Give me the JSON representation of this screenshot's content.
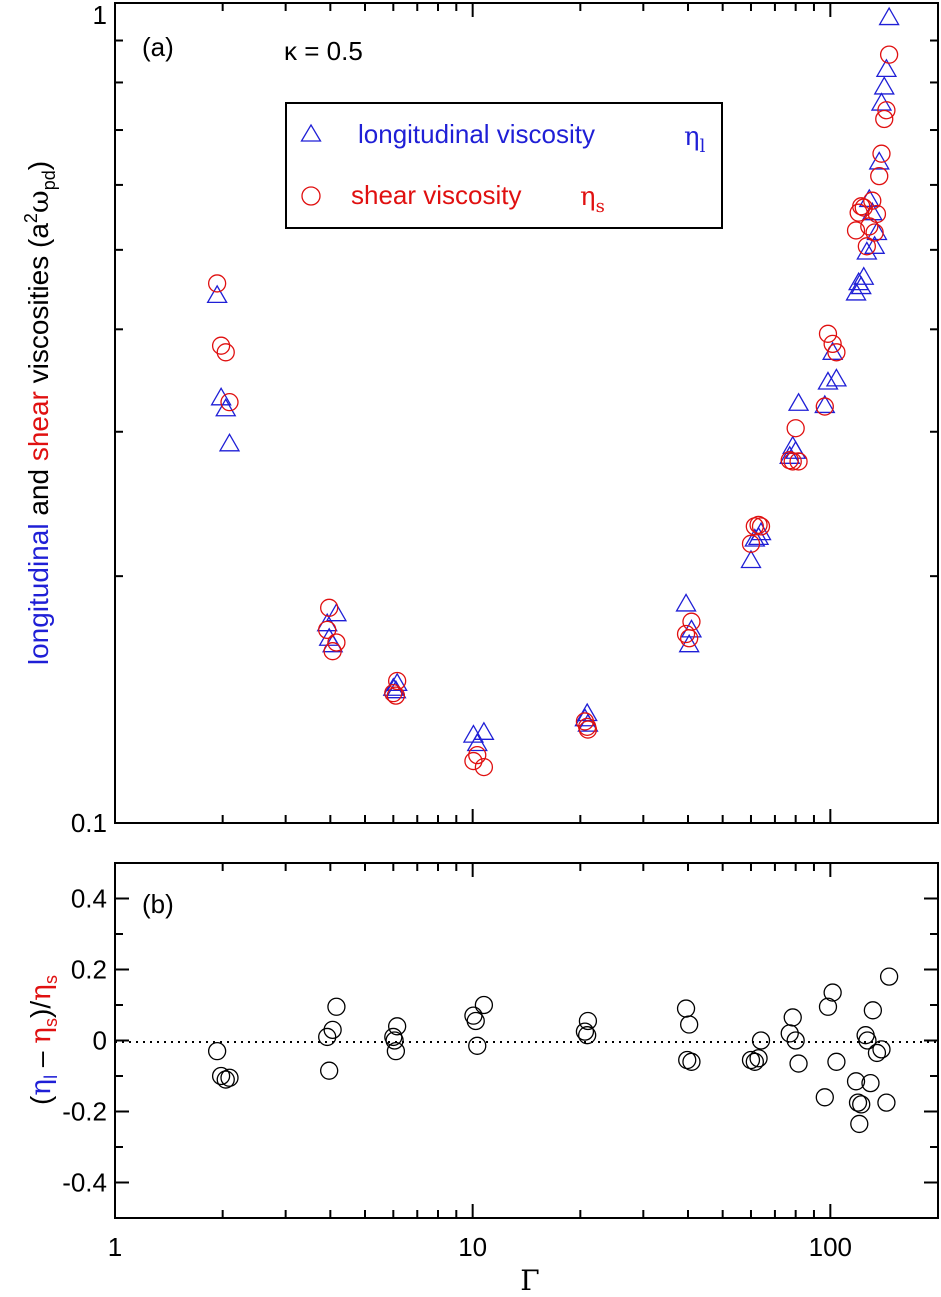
{
  "colors": {
    "longitudinal": "#1f1fd6",
    "shear": "#e01010",
    "axis": "#000000",
    "ratio": "#000000"
  },
  "chart_data": [
    {
      "panel": "a",
      "type": "scatter",
      "panel_label": "(a)",
      "annotation": "κ = 0.5",
      "x_scale": "log",
      "y_scale": "log",
      "xlim": [
        1,
        200
      ],
      "ylim": [
        0.1,
        1
      ],
      "y_tick_labels": [
        {
          "value": 1,
          "label": "1"
        },
        {
          "value": 0.1,
          "label": "0.1"
        }
      ],
      "ylabel": {
        "part_longitudinal": "longitudinal",
        "part_and": " and ",
        "part_shear": "shear",
        "part_rest": " viscosities (a",
        "sup": "2",
        "omega": "ω",
        "sub": "pd",
        "close": ")"
      },
      "legend": [
        {
          "name": "longitudinal",
          "text": "longitudinal viscosity",
          "symbol": "η",
          "sub": "l",
          "marker": "triangle",
          "color_key": "longitudinal"
        },
        {
          "name": "shear",
          "text": "shear viscosity",
          "symbol": "η",
          "sub": "s",
          "marker": "circle",
          "color_key": "shear"
        }
      ],
      "series": [
        {
          "name": "longitudinal viscosity",
          "marker": "triangle",
          "color_key": "longitudinal",
          "points": [
            [
              1.93,
              0.44
            ],
            [
              1.98,
              0.33
            ],
            [
              2.04,
              0.32
            ],
            [
              2.09,
              0.29
            ],
            [
              3.92,
              0.175
            ],
            [
              4.06,
              0.165
            ],
            [
              4.16,
              0.18
            ],
            [
              3.97,
              0.168
            ],
            [
              6.0,
              0.146
            ],
            [
              6.1,
              0.145
            ],
            [
              6.15,
              0.148
            ],
            [
              10.05,
              0.128
            ],
            [
              10.3,
              0.125
            ],
            [
              10.75,
              0.129
            ],
            [
              20.6,
              0.134
            ],
            [
              20.9,
              0.136
            ],
            [
              21.0,
              0.132
            ],
            [
              39.5,
              0.185
            ],
            [
              40.3,
              0.165
            ],
            [
              40.9,
              0.172
            ],
            [
              60.0,
              0.209
            ],
            [
              61.5,
              0.222
            ],
            [
              63.0,
              0.223
            ],
            [
              64.0,
              0.226
            ],
            [
              77.0,
              0.28
            ],
            [
              78.5,
              0.288
            ],
            [
              80.0,
              0.284
            ],
            [
              81.5,
              0.325
            ],
            [
              96.5,
              0.323
            ],
            [
              98.5,
              0.345
            ],
            [
              101.5,
              0.375
            ],
            [
              104.0,
              0.348
            ],
            [
              118.0,
              0.443
            ],
            [
              120.0,
              0.456
            ],
            [
              122.0,
              0.451
            ],
            [
              124.0,
              0.463
            ],
            [
              126.5,
              0.497
            ],
            [
              128.5,
              0.576
            ],
            [
              131.0,
              0.555
            ],
            [
              133.0,
              0.505
            ],
            [
              135.0,
              0.525
            ],
            [
              137.0,
              0.64
            ],
            [
              139.0,
              0.755
            ],
            [
              141.5,
              0.79
            ],
            [
              143.5,
              0.83
            ],
            [
              146.0,
              0.96
            ]
          ]
        },
        {
          "name": "shear viscosity",
          "marker": "circle",
          "color_key": "shear",
          "points": [
            [
              1.93,
              0.455
            ],
            [
              1.98,
              0.382
            ],
            [
              2.04,
              0.375
            ],
            [
              2.09,
              0.326
            ],
            [
              3.92,
              0.172
            ],
            [
              4.06,
              0.162
            ],
            [
              3.97,
              0.183
            ],
            [
              4.16,
              0.166
            ],
            [
              6.0,
              0.144
            ],
            [
              6.1,
              0.143
            ],
            [
              6.15,
              0.149
            ],
            [
              10.05,
              0.119
            ],
            [
              10.3,
              0.121
            ],
            [
              10.75,
              0.117
            ],
            [
              20.6,
              0.133
            ],
            [
              20.9,
              0.131
            ],
            [
              21.0,
              0.13
            ],
            [
              39.5,
              0.17
            ],
            [
              40.3,
              0.168
            ],
            [
              40.9,
              0.176
            ],
            [
              60.0,
              0.219
            ],
            [
              61.5,
              0.23
            ],
            [
              63.0,
              0.231
            ],
            [
              64.0,
              0.23
            ],
            [
              77.0,
              0.277
            ],
            [
              78.5,
              0.276
            ],
            [
              80.0,
              0.303
            ],
            [
              81.5,
              0.276
            ],
            [
              96.5,
              0.322
            ],
            [
              98.5,
              0.395
            ],
            [
              101.5,
              0.384
            ],
            [
              104.0,
              0.375
            ],
            [
              118.0,
              0.528
            ],
            [
              120.0,
              0.555
            ],
            [
              122.0,
              0.565
            ],
            [
              124.0,
              0.563
            ],
            [
              126.5,
              0.505
            ],
            [
              128.5,
              0.534
            ],
            [
              131.0,
              0.574
            ],
            [
              133.0,
              0.525
            ],
            [
              135.0,
              0.553
            ],
            [
              137.0,
              0.615
            ],
            [
              139.0,
              0.655
            ],
            [
              141.5,
              0.722
            ],
            [
              143.5,
              0.74
            ],
            [
              146.0,
              0.865
            ]
          ]
        }
      ]
    },
    {
      "panel": "b",
      "type": "scatter",
      "panel_label": "(b)",
      "x_scale": "log",
      "xlim": [
        1,
        200
      ],
      "ylim": [
        -0.5,
        0.5
      ],
      "y_tick_labels": [
        {
          "value": 0.4,
          "label": "0.4"
        },
        {
          "value": 0.2,
          "label": "0.2"
        },
        {
          "value": 0,
          "label": "0"
        },
        {
          "value": -0.2,
          "label": "-0.2"
        },
        {
          "value": -0.4,
          "label": "-0.4"
        }
      ],
      "x_tick_labels": [
        {
          "value": 1,
          "label": "1"
        },
        {
          "value": 10,
          "label": "10"
        },
        {
          "value": 100,
          "label": "100"
        }
      ],
      "xlabel": "Γ",
      "ylabel": {
        "open": "(",
        "eta": "η",
        "sub_l": "l",
        "minus": " – ",
        "sub_s": "s",
        "close": ")",
        "slash": "/"
      },
      "reference_line_y": 0,
      "series": [
        {
          "name": "relative difference",
          "marker": "circle",
          "color_key": "ratio",
          "points": [
            [
              1.93,
              -0.03
            ],
            [
              1.98,
              -0.1
            ],
            [
              2.04,
              -0.11
            ],
            [
              2.09,
              -0.105
            ],
            [
              3.92,
              0.01
            ],
            [
              3.97,
              -0.085
            ],
            [
              4.06,
              0.03
            ],
            [
              4.16,
              0.095
            ],
            [
              6.0,
              0.01
            ],
            [
              6.05,
              0.0
            ],
            [
              6.1,
              -0.03
            ],
            [
              6.15,
              0.04
            ],
            [
              10.05,
              0.07
            ],
            [
              10.2,
              0.055
            ],
            [
              10.3,
              -0.015
            ],
            [
              10.75,
              0.1
            ],
            [
              20.6,
              0.025
            ],
            [
              20.9,
              0.015
            ],
            [
              21.0,
              0.055
            ],
            [
              39.5,
              0.09
            ],
            [
              39.8,
              -0.055
            ],
            [
              40.3,
              0.045
            ],
            [
              40.9,
              -0.06
            ],
            [
              60.0,
              -0.055
            ],
            [
              61.5,
              -0.06
            ],
            [
              63.0,
              -0.05
            ],
            [
              64.0,
              0.0
            ],
            [
              77.0,
              0.02
            ],
            [
              78.5,
              0.065
            ],
            [
              80.0,
              0.0
            ],
            [
              81.5,
              -0.065
            ],
            [
              96.5,
              -0.16
            ],
            [
              98.5,
              0.095
            ],
            [
              101.5,
              0.135
            ],
            [
              104.0,
              -0.06
            ],
            [
              118.0,
              -0.115
            ],
            [
              119.5,
              -0.175
            ],
            [
              120.5,
              -0.235
            ],
            [
              122.0,
              -0.18
            ],
            [
              125.5,
              0.015
            ],
            [
              127.0,
              0.0
            ],
            [
              129.5,
              -0.12
            ],
            [
              131.5,
              0.085
            ],
            [
              135.0,
              -0.035
            ],
            [
              139.0,
              -0.025
            ],
            [
              143.5,
              -0.175
            ],
            [
              146.0,
              0.18
            ]
          ]
        }
      ]
    }
  ]
}
